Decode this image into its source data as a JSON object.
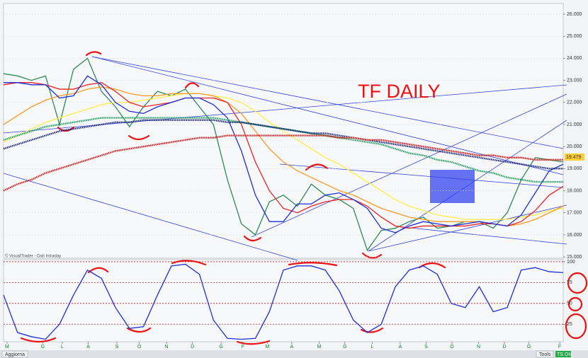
{
  "chart_data": [
    {
      "type": "line",
      "annotations": [
        "TF DAILY",
        "© VisualTrader - Dati Intraday"
      ],
      "price_label": "19.479",
      "x": [
        0,
        2,
        4,
        6,
        8,
        10,
        12,
        14,
        16,
        18,
        20,
        22,
        24,
        26,
        28,
        30,
        32,
        34,
        36,
        38,
        40,
        42,
        44,
        46,
        48,
        50,
        52,
        54,
        56,
        58,
        60,
        62,
        64,
        66,
        68,
        70,
        72,
        74,
        76,
        78,
        80
      ],
      "xlim": [
        0,
        80
      ],
      "ylim": [
        14.94,
        26.48
      ],
      "yticks": [
        {
          "value": 15,
          "label": "15.000"
        },
        {
          "value": 16,
          "label": "16.000"
        },
        {
          "value": 17,
          "label": "17.000"
        },
        {
          "value": 18,
          "label": "18.000"
        },
        {
          "value": 19,
          "label": "19.000"
        },
        {
          "value": 20,
          "label": "20.000"
        },
        {
          "value": 21,
          "label": "21.000"
        },
        {
          "value": 22,
          "label": "22.000"
        },
        {
          "value": 23,
          "label": "23.000"
        },
        {
          "value": 24,
          "label": "24.000"
        },
        {
          "value": 25,
          "label": "25.000"
        },
        {
          "value": 26,
          "label": "26.000"
        }
      ],
      "grid": true,
      "series": [
        {
          "color": "#2e8b57",
          "values": [
            23.3,
            23.2,
            23.0,
            23.2,
            21.0,
            23.5,
            24.0,
            22.5,
            21.8,
            20.9,
            21.8,
            22.5,
            22.3,
            22.6,
            21.8,
            21.0,
            18.5,
            16.5,
            16.0,
            17.5,
            17.8,
            17.3,
            18.3,
            17.8,
            17.6,
            17.2,
            15.3,
            16.2,
            16.3,
            16.6,
            16.8,
            16.3,
            16.4,
            16.6,
            16.6,
            16.3,
            17.0,
            18.5,
            19.5,
            19.4,
            19.3
          ]
        },
        {
          "color": "#ffee44",
          "values": [
            20.2,
            20.5,
            20.8,
            21.1,
            21.3,
            21.5,
            21.7,
            21.9,
            22.0,
            22.0,
            22.1,
            22.2,
            22.3,
            22.4,
            22.4,
            22.3,
            22.2,
            22.0,
            21.6,
            21.1,
            20.7,
            20.3,
            19.9,
            19.5,
            19.2,
            18.8,
            18.4,
            18.0,
            17.6,
            17.3,
            17.1,
            16.9,
            16.8,
            16.7,
            16.7,
            16.7,
            16.7,
            16.8,
            16.9,
            17.1,
            17.2
          ]
        },
        {
          "color": "#ff9922",
          "values": [
            21.0,
            21.4,
            21.8,
            22.1,
            22.3,
            22.4,
            22.6,
            22.7,
            22.6,
            22.4,
            22.3,
            22.3,
            22.4,
            22.4,
            22.4,
            22.3,
            22.0,
            21.5,
            20.7,
            19.9,
            19.3,
            18.9,
            18.6,
            18.3,
            18.0,
            17.8,
            17.5,
            17.2,
            17.0,
            16.8,
            16.7,
            16.6,
            16.6,
            16.6,
            16.6,
            16.5,
            16.4,
            16.5,
            16.7,
            17.0,
            17.3
          ]
        },
        {
          "color": "#ee2222",
          "values": [
            22.8,
            22.9,
            22.9,
            22.8,
            22.6,
            22.6,
            22.8,
            22.9,
            22.5,
            22.0,
            21.8,
            21.9,
            22.0,
            22.2,
            22.2,
            22.2,
            22.0,
            21.0,
            19.3,
            18.0,
            17.2,
            17.0,
            17.3,
            17.5,
            17.6,
            17.6,
            17.3,
            16.8,
            16.4,
            16.3,
            16.4,
            16.4,
            16.4,
            16.4,
            16.5,
            16.5,
            16.4,
            16.6,
            17.1,
            17.8,
            18.2
          ]
        },
        {
          "color": "#1c2fd8",
          "values": [
            22.9,
            22.9,
            22.8,
            22.8,
            22.2,
            22.3,
            23.2,
            22.8,
            22.0,
            21.6,
            21.5,
            21.8,
            22.0,
            22.2,
            22.2,
            21.9,
            21.3,
            19.8,
            17.8,
            16.6,
            16.6,
            17.4,
            17.4,
            17.8,
            17.9,
            17.6,
            17.2,
            16.3,
            16.1,
            16.4,
            16.6,
            16.5,
            16.4,
            16.5,
            16.6,
            16.5,
            16.4,
            16.9,
            17.9,
            18.9,
            19.2
          ]
        },
        {
          "color": "#22a060",
          "dash": "dotted",
          "values": [
            20.3,
            20.5,
            20.7,
            20.9,
            21.0,
            21.1,
            21.2,
            21.3,
            21.3,
            21.3,
            21.3,
            21.3,
            21.3,
            21.3,
            21.3,
            21.3,
            21.2,
            21.1,
            21.0,
            20.9,
            20.8,
            20.7,
            20.6,
            20.5,
            20.4,
            20.3,
            20.2,
            20.1,
            19.9,
            19.7,
            19.6,
            19.4,
            19.3,
            19.1,
            18.9,
            18.8,
            18.6,
            18.5,
            18.4,
            18.4,
            18.4
          ]
        },
        {
          "color": "#1a237e",
          "dash": "dotted",
          "values": [
            19.9,
            20.1,
            20.3,
            20.5,
            20.7,
            20.8,
            20.9,
            21.0,
            21.1,
            21.1,
            21.2,
            21.2,
            21.2,
            21.2,
            21.2,
            21.2,
            21.1,
            21.1,
            21.0,
            20.9,
            20.8,
            20.7,
            20.6,
            20.6,
            20.5,
            20.4,
            20.3,
            20.2,
            20.1,
            20.0,
            19.9,
            19.8,
            19.7,
            19.6,
            19.5,
            19.4,
            19.3,
            19.2,
            19.1,
            19.0,
            19.0
          ]
        },
        {
          "color": "#dd1111",
          "dash": "dotted",
          "values": [
            18.0,
            18.3,
            18.5,
            18.8,
            19.0,
            19.2,
            19.4,
            19.6,
            19.8,
            19.9,
            20.0,
            20.1,
            20.2,
            20.3,
            20.4,
            20.4,
            20.5,
            20.5,
            20.5,
            20.5,
            20.5,
            20.5,
            20.5,
            20.5,
            20.4,
            20.4,
            20.3,
            20.3,
            20.2,
            20.1,
            20.0,
            19.9,
            19.8,
            19.7,
            19.6,
            19.6,
            19.5,
            19.5,
            19.4,
            19.4,
            19.4
          ]
        }
      ]
    },
    {
      "type": "line",
      "x": [
        0,
        2,
        4,
        6,
        8,
        10,
        12,
        14,
        16,
        18,
        20,
        22,
        24,
        26,
        28,
        30,
        32,
        34,
        36,
        38,
        40,
        42,
        44,
        46,
        48,
        50,
        52,
        54,
        56,
        58,
        60,
        62,
        64,
        66,
        68,
        70,
        72,
        74,
        76,
        78,
        80
      ],
      "xlim": [
        0,
        80
      ],
      "xticks": [
        {
          "value": 0.5,
          "label": "M"
        },
        {
          "value": 5.6,
          "label": "G"
        },
        {
          "value": 8.4,
          "label": "L"
        },
        {
          "value": 12.1,
          "label": "A"
        },
        {
          "value": 16.2,
          "label": "S"
        },
        {
          "value": 19.4,
          "label": "O"
        },
        {
          "value": 23.3,
          "label": "N"
        },
        {
          "value": 27.0,
          "label": "D"
        },
        {
          "value": 31.1,
          "label": "G"
        },
        {
          "value": 34.2,
          "label": "F"
        },
        {
          "value": 37.7,
          "label": "M"
        },
        {
          "value": 41.2,
          "label": "A"
        },
        {
          "value": 45.1,
          "label": "M"
        },
        {
          "value": 48.8,
          "label": "G"
        },
        {
          "value": 52.7,
          "label": "L"
        },
        {
          "value": 56.7,
          "label": "A"
        },
        {
          "value": 60.4,
          "label": "S"
        },
        {
          "value": 64.1,
          "label": "O"
        },
        {
          "value": 67.9,
          "label": "N"
        },
        {
          "value": 71.6,
          "label": "D"
        },
        {
          "value": 75.1,
          "label": "G"
        },
        {
          "value": 79.5,
          "label": "F"
        }
      ],
      "ylim": [
        4,
        102.5
      ],
      "yticks": [
        25,
        50,
        75,
        100
      ],
      "grid": true,
      "grid_color": "#dd1111",
      "series": [
        {
          "color": "#1c2fd8",
          "values": [
            60,
            15,
            10,
            7,
            25,
            60,
            90,
            80,
            45,
            20,
            22,
            60,
            95,
            97,
            85,
            30,
            8,
            7,
            8,
            40,
            90,
            95,
            95,
            90,
            65,
            30,
            15,
            25,
            70,
            90,
            95,
            85,
            50,
            45,
            70,
            40,
            45,
            90,
            93,
            88,
            87
          ]
        }
      ]
    }
  ],
  "toolbar": {
    "left": "Aggiorna",
    "right": [
      "Tools",
      "TS ON"
    ]
  }
}
